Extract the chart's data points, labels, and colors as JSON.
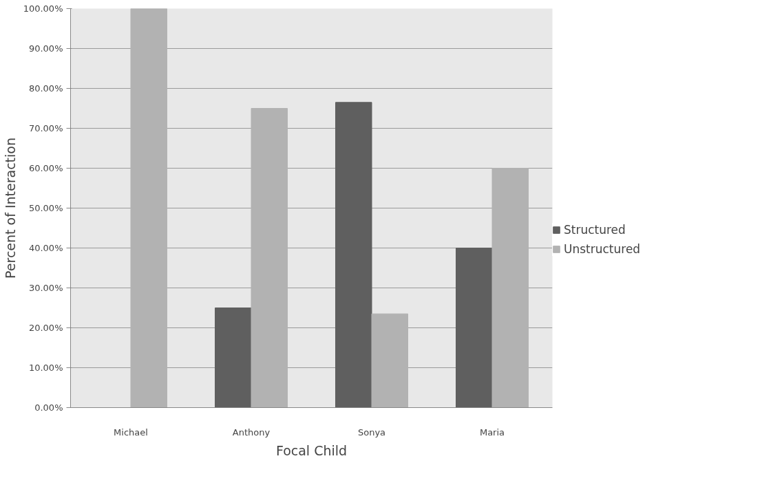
{
  "chart_data": {
    "type": "bar",
    "xlabel": "Focal Child",
    "ylabel": "Percent of Interaction",
    "categories": [
      "Michael",
      "Anthony",
      "Sonya",
      "Maria"
    ],
    "series": [
      {
        "name": "Structured",
        "color": "#5f5f5f",
        "values": [
          0,
          25,
          76.5,
          40
        ]
      },
      {
        "name": "Unstructured",
        "color": "#b2b2b2",
        "values": [
          100,
          75,
          23.5,
          60
        ]
      }
    ],
    "ylim": [
      0,
      100
    ],
    "yticks": [
      {
        "value": 0,
        "label": "0.00%"
      },
      {
        "value": 10,
        "label": "10.00%"
      },
      {
        "value": 20,
        "label": "20.00%"
      },
      {
        "value": 30,
        "label": "30.00%"
      },
      {
        "value": 40,
        "label": "40.00%"
      },
      {
        "value": 50,
        "label": "50.00%"
      },
      {
        "value": 60,
        "label": "60.00%"
      },
      {
        "value": 70,
        "label": "70.00%"
      },
      {
        "value": 80,
        "label": "80.00%"
      },
      {
        "value": 90,
        "label": "90.00%"
      },
      {
        "value": 100,
        "label": "100.00%"
      }
    ],
    "grid": "y",
    "legend": "right"
  }
}
